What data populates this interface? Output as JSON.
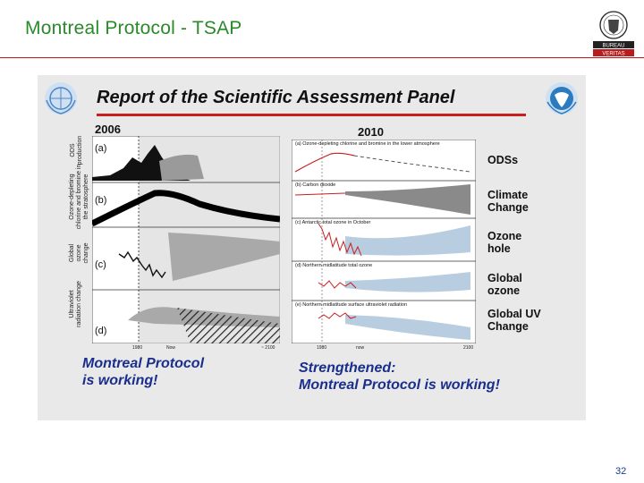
{
  "slide": {
    "title": "Montreal Protocol -  TSAP",
    "page_number": "32",
    "logo_text_top": "BUREAU",
    "logo_text_bottom": "VERITAS"
  },
  "figure": {
    "title": "Report of the Scientific Assessment Panel",
    "left": {
      "year": "2006",
      "y_labels": [
        "ODS production",
        "Ozone-depleting chlorine and bromine in the stratosphere",
        "Global ozone change",
        "Ultraviolet radiation change"
      ],
      "panel_labels": [
        "(a)",
        "(b)",
        "(c)",
        "(d)"
      ],
      "x_ticks": [
        "1980",
        "Now",
        "~ 2100"
      ],
      "caption": "Montreal Protocol\nis working!"
    },
    "right": {
      "year": "2010",
      "panel_titles": [
        "(a) Ozone-depleting chlorine and bromine in the lower atmosphere",
        "(b) Carbon dioxide",
        "(c) Antarctic total ozone in October",
        "(d) Northern midlatitude total ozone",
        "(e) Northern midlatitude surface ultraviolet radiation"
      ],
      "x_ticks": [
        "1980",
        "now",
        "2100"
      ],
      "legend": [
        "ODSs",
        "Climate\nChange",
        "Ozone\nhole",
        "Global\nozone",
        "Global UV\nChange"
      ],
      "caption": "Strengthened:\nMontreal Protocol is working!"
    },
    "colors": {
      "accent_red": "#c81e1e",
      "caption_blue": "#1a2e8c",
      "title_green": "#2a8a2a"
    }
  }
}
